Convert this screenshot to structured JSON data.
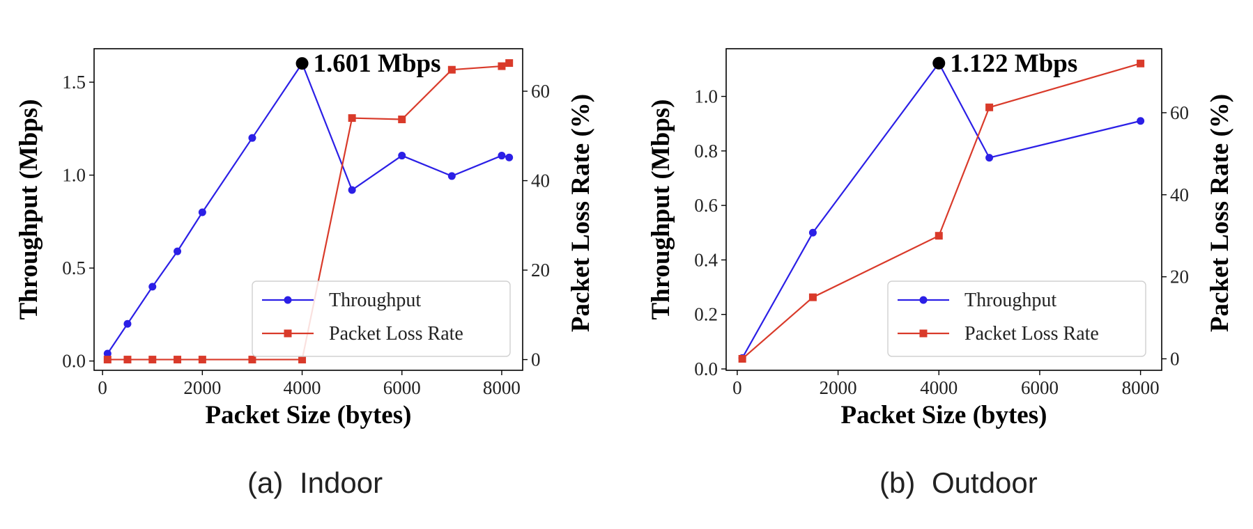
{
  "chart_data": [
    {
      "type": "line",
      "caption_label": "(a)",
      "caption_text": "Indoor",
      "xlabel": "Packet Size (bytes)",
      "ylabel": "Throughput (Mbps)",
      "y2label": "Packet Loss Rate (%)",
      "xlim": [
        -170,
        8420
      ],
      "ylim": [
        -0.05,
        1.68
      ],
      "y2lim": [
        -2.4,
        69.5
      ],
      "xticks": [
        0,
        2000,
        4000,
        6000,
        8000
      ],
      "yticks": [
        0.0,
        0.5,
        1.0,
        1.5
      ],
      "y2ticks": [
        0,
        20,
        40,
        60
      ],
      "series": [
        {
          "name": "Throughput",
          "axis": "left",
          "marker": "circle",
          "x": [
            100,
            500,
            1000,
            1500,
            2000,
            3000,
            4000,
            5000,
            6000,
            7000,
            8000,
            8150
          ],
          "y": [
            0.04,
            0.2,
            0.4,
            0.59,
            0.8,
            1.2,
            1.601,
            0.92,
            1.105,
            0.995,
            1.105,
            1.095
          ]
        },
        {
          "name": "Packet Loss Rate",
          "axis": "right",
          "marker": "square",
          "x": [
            100,
            500,
            1000,
            1500,
            2000,
            3000,
            4000,
            5000,
            6000,
            7000,
            8000,
            8150
          ],
          "y": [
            0,
            0,
            0,
            0,
            0,
            0,
            0,
            54,
            53.7,
            64.8,
            65.6,
            66.3
          ]
        }
      ],
      "highlight": {
        "x": 4000,
        "y": 1.601,
        "label": "1.601 Mbps"
      },
      "legend": "lower right"
    },
    {
      "type": "line",
      "caption_label": "(b)",
      "caption_text": "Outdoor",
      "xlabel": "Packet Size (bytes)",
      "ylabel": "Throughput (Mbps)",
      "y2label": "Packet Loss Rate (%)",
      "xlim": [
        -220,
        8420
      ],
      "ylim": [
        -0.005,
        1.175
      ],
      "y2lim": [
        -2.8,
        75.6
      ],
      "xticks": [
        0,
        2000,
        4000,
        6000,
        8000
      ],
      "yticks": [
        0.0,
        0.2,
        0.4,
        0.6,
        0.8,
        1.0
      ],
      "y2ticks": [
        0,
        20,
        40,
        60
      ],
      "series": [
        {
          "name": "Throughput",
          "axis": "left",
          "marker": "circle",
          "x": [
            100,
            1500,
            4000,
            5000,
            8000
          ],
          "y": [
            0.04,
            0.5,
            1.122,
            0.775,
            0.91
          ]
        },
        {
          "name": "Packet Loss Rate",
          "axis": "right",
          "marker": "square",
          "x": [
            100,
            1500,
            4000,
            5000,
            8000
          ],
          "y": [
            0,
            15,
            30,
            61.3,
            72
          ]
        }
      ],
      "highlight": {
        "x": 4000,
        "y": 1.122,
        "label": "1.122 Mbps"
      },
      "legend": "lower right"
    }
  ],
  "colors": {
    "throughput": "#2b1fe6",
    "loss": "#d93a2a",
    "highlight": "#000000",
    "axis": "#000000",
    "legend_border": "#d0d0d0"
  }
}
